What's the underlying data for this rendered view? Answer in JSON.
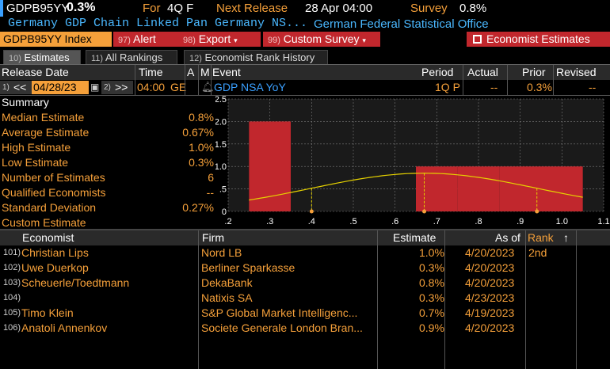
{
  "header": {
    "ticker": "GDPB95YY",
    "value": "0.3%",
    "for_label": "For",
    "for_period": "4Q F",
    "next_release_label": "Next Release",
    "next_release": "28 Apr 04:00",
    "survey_label": "Survey",
    "survey": "0.8%",
    "description": "Germany GDP Chain Linked Pan Germany NS...",
    "source": "German Federal Statistical Office"
  },
  "menu": {
    "security": "GDPB95YY Index",
    "alert_num": "97)",
    "alert": "Alert",
    "export_num": "98)",
    "export": "Export",
    "custom_num": "99)",
    "custom": "Custom Survey",
    "economist_estimates": "Economist Estimates"
  },
  "tabs": [
    {
      "num": "10)",
      "label": "Estimates"
    },
    {
      "num": "11)",
      "label": "All Rankings"
    },
    {
      "num": "12)",
      "label": "Economist Rank History"
    }
  ],
  "columns": {
    "release_date": "Release Date",
    "time": "Time",
    "a": "A",
    "m": "M",
    "event": "Event",
    "period": "Period",
    "actual": "Actual",
    "prior": "Prior",
    "revised": "Revised"
  },
  "release_row": {
    "prev_num": "1)",
    "prev": "<<",
    "date": "04/28/23",
    "next_num": "2)",
    "next": ">>",
    "time": "04:00",
    "tz": "GE",
    "event": "GDP NSA YoY",
    "period": "1Q P",
    "actual": "--",
    "prior": "0.3%",
    "revised": "--"
  },
  "summary": {
    "title": "Summary",
    "rows": [
      {
        "label": "Median Estimate",
        "value": "0.8%"
      },
      {
        "label": "Average Estimate",
        "value": "0.67%"
      },
      {
        "label": "High Estimate",
        "value": "1.0%"
      },
      {
        "label": "Low Estimate",
        "value": "0.3%"
      },
      {
        "label": "Number of Estimates",
        "value": "6"
      },
      {
        "label": "Qualified Economists",
        "value": "--"
      },
      {
        "label": "Standard Deviation",
        "value": "0.27%"
      },
      {
        "label": "Custom Estimate",
        "value": ""
      }
    ]
  },
  "chart_data": {
    "type": "bar",
    "xlim": [
      0.2,
      1.1
    ],
    "ylim": [
      0,
      2.5
    ],
    "x_ticks": [
      ".2",
      ".3",
      ".4",
      ".5",
      ".6",
      ".7",
      ".8",
      ".9",
      "1.0",
      "1.1"
    ],
    "y_ticks": [
      "0",
      ".5",
      "1.0",
      "1.5",
      "2.0",
      "2.5"
    ],
    "bars": [
      {
        "x0": 0.25,
        "x1": 0.35,
        "count": 2
      },
      {
        "x0": 0.65,
        "x1": 0.75,
        "count": 1
      },
      {
        "x0": 0.75,
        "x1": 0.85,
        "count": 1
      },
      {
        "x0": 0.85,
        "x1": 0.95,
        "count": 1
      },
      {
        "x0": 0.95,
        "x1": 1.05,
        "count": 1
      }
    ],
    "markers": [
      0.4,
      0.67,
      0.94
    ],
    "curve": {
      "mean": 0.67,
      "sd": 0.27,
      "peak": 0.85
    },
    "grid": true,
    "colors": {
      "bar": "#c1272d",
      "curve": "#e6d200",
      "marker": "#f5a03a",
      "grid": "#7a7a7a",
      "bg": "#1a1a1a"
    }
  },
  "economists_header": {
    "economist": "Economist",
    "firm": "Firm",
    "estimate": "Estimate",
    "as_of": "As of",
    "rank": "Rank",
    "sort_icon": "↑"
  },
  "economists": [
    {
      "idx": "101)",
      "name": "Christian Lips",
      "firm": "Nord LB",
      "estimate": "1.0%",
      "as_of": "4/20/2023",
      "rank": "2nd"
    },
    {
      "idx": "102)",
      "name": "Uwe Duerkop",
      "firm": "Berliner Sparkasse",
      "estimate": "0.3%",
      "as_of": "4/20/2023",
      "rank": ""
    },
    {
      "idx": "103)",
      "name": "Scheuerle/Toedtmann",
      "firm": "DekaBank",
      "estimate": "0.8%",
      "as_of": "4/20/2023",
      "rank": ""
    },
    {
      "idx": "104)",
      "name": "",
      "firm": "Natixis SA",
      "estimate": "0.3%",
      "as_of": "4/23/2023",
      "rank": ""
    },
    {
      "idx": "105)",
      "name": "Timo Klein",
      "firm": "S&P Global Market Intelligenc...",
      "estimate": "0.7%",
      "as_of": "4/19/2023",
      "rank": ""
    },
    {
      "idx": "106)",
      "name": "Anatoli Annenkov",
      "firm": "Societe Generale London Bran...",
      "estimate": "0.9%",
      "as_of": "4/20/2023",
      "rank": ""
    }
  ]
}
